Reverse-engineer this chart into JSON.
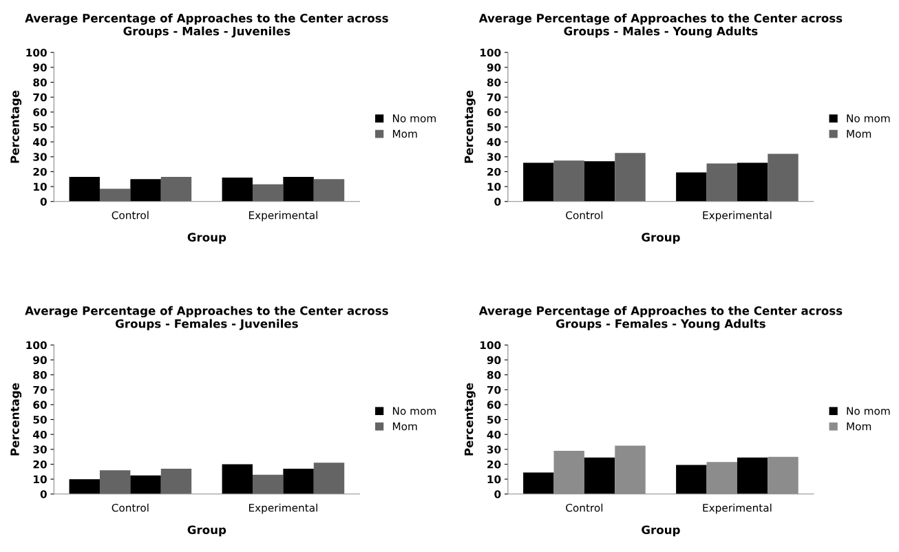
{
  "chart_data": [
    {
      "type": "bar",
      "title": "Average Percentage of Approaches to the Center across Groups - Males - Juveniles",
      "xlabel": "Group",
      "ylabel": "Percentage",
      "categories": [
        "Control",
        "Experimental"
      ],
      "ylim": [
        0,
        100
      ],
      "yticks": [
        0,
        10,
        20,
        30,
        40,
        50,
        60,
        70,
        80,
        90,
        100
      ],
      "grid": false,
      "legend": "right",
      "series": [
        {
          "name": "No mom",
          "color": "#000000",
          "values": [
            16.5,
            16
          ]
        },
        {
          "name": "Mom",
          "color": "#646464",
          "values": [
            8.5,
            11.5
          ]
        },
        {
          "color": "#000000",
          "values": [
            15,
            16.5
          ]
        },
        {
          "color": "#646464",
          "values": [
            16.5,
            15
          ]
        }
      ]
    },
    {
      "type": "bar",
      "title": "Average Percentage of Approaches to the Center across Groups - Males - Young Adults",
      "xlabel": "Group",
      "ylabel": "Percentage",
      "categories": [
        "Control",
        "Experimental"
      ],
      "ylim": [
        0,
        100
      ],
      "yticks": [
        0,
        10,
        20,
        30,
        40,
        50,
        60,
        70,
        80,
        90,
        100
      ],
      "grid": false,
      "legend": "right",
      "series": [
        {
          "name": "No mom",
          "color": "#000000",
          "values": [
            26,
            19.5
          ]
        },
        {
          "name": "Mom",
          "color": "#646464",
          "values": [
            27.5,
            25.5
          ]
        },
        {
          "color": "#000000",
          "values": [
            27,
            26
          ]
        },
        {
          "color": "#646464",
          "values": [
            32.5,
            32
          ]
        }
      ]
    },
    {
      "type": "bar",
      "title": "Average Percentage of Approaches to the Center across Groups - Females - Juveniles",
      "xlabel": "Group",
      "ylabel": "Percentage",
      "categories": [
        "Control",
        "Experimental"
      ],
      "ylim": [
        0,
        100
      ],
      "yticks": [
        0,
        10,
        20,
        30,
        40,
        50,
        60,
        70,
        80,
        90,
        100
      ],
      "grid": false,
      "legend": "right",
      "series": [
        {
          "name": "No mom",
          "color": "#000000",
          "values": [
            10,
            20
          ]
        },
        {
          "name": "Mom",
          "color": "#646464",
          "values": [
            16,
            13
          ]
        },
        {
          "color": "#000000",
          "values": [
            12.5,
            17
          ]
        },
        {
          "color": "#646464",
          "values": [
            17,
            21
          ]
        }
      ]
    },
    {
      "type": "bar",
      "title": "Average Percentage of Approaches to the Center across Groups - Females - Young Adults",
      "xlabel": "Group",
      "ylabel": "Percentage",
      "categories": [
        "Control",
        "Experimental"
      ],
      "ylim": [
        0,
        100
      ],
      "yticks": [
        0,
        10,
        20,
        30,
        40,
        50,
        60,
        70,
        80,
        90,
        100
      ],
      "grid": false,
      "legend": "right",
      "series": [
        {
          "name": "No mom",
          "color": "#000000",
          "values": [
            14.5,
            19.5
          ]
        },
        {
          "name": "Mom",
          "color": "#8c8c8c",
          "values": [
            29,
            21.5
          ]
        },
        {
          "color": "#000000",
          "values": [
            24.5,
            24.5
          ]
        },
        {
          "color": "#8c8c8c",
          "values": [
            32.5,
            25
          ]
        }
      ]
    }
  ]
}
